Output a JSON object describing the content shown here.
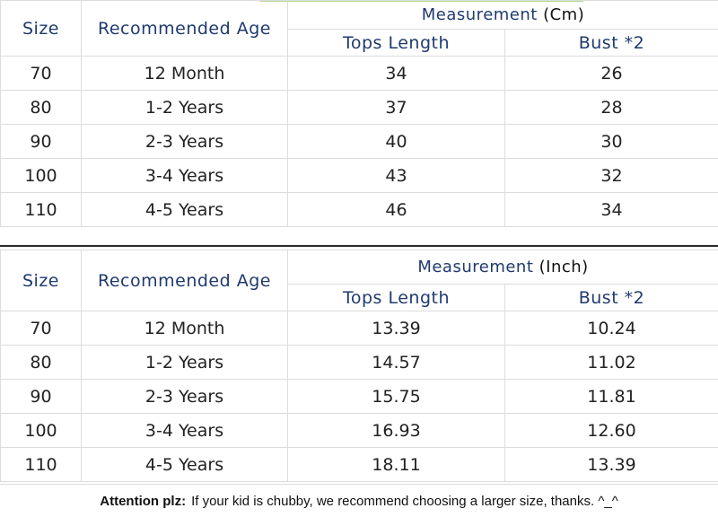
{
  "tables": [
    {
      "header": {
        "size": "Size",
        "age": "Recommended Age",
        "measurement": "Measurement",
        "unit": "(Cm)",
        "tops": "Tops Length",
        "bust": "Bust *2"
      },
      "rows": [
        {
          "size": "70",
          "age": "12 Month",
          "tops": "34",
          "bust": "26"
        },
        {
          "size": "80",
          "age": "1-2 Years",
          "tops": "37",
          "bust": "28"
        },
        {
          "size": "90",
          "age": "2-3 Years",
          "tops": "40",
          "bust": "30"
        },
        {
          "size": "100",
          "age": "3-4 Years",
          "tops": "43",
          "bust": "32"
        },
        {
          "size": "110",
          "age": "4-5 Years",
          "tops": "46",
          "bust": "34"
        }
      ]
    },
    {
      "header": {
        "size": "Size",
        "age": "Recommended Age",
        "measurement": "Measurement",
        "unit": "(Inch)",
        "tops": "Tops Length",
        "bust": "Bust *2"
      },
      "rows": [
        {
          "size": "70",
          "age": "12 Month",
          "tops": "13.39",
          "bust": "10.24"
        },
        {
          "size": "80",
          "age": "1-2 Years",
          "tops": "14.57",
          "bust": "11.02"
        },
        {
          "size": "90",
          "age": "2-3 Years",
          "tops": "15.75",
          "bust": "11.81"
        },
        {
          "size": "100",
          "age": "3-4 Years",
          "tops": "16.93",
          "bust": "12.60"
        },
        {
          "size": "110",
          "age": "4-5 Years",
          "tops": "18.11",
          "bust": "13.39"
        }
      ]
    }
  ],
  "note": {
    "label": "Attention plz:",
    "text": "If your kid is chubby, we recommend choosing a larger size, thanks. ^_^"
  }
}
